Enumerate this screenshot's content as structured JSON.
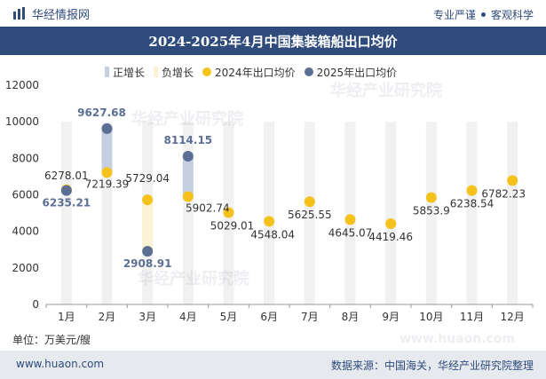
{
  "header": {
    "brand": "华经情报网",
    "tagline_left": "专业严谨",
    "tagline_right": "客观科学"
  },
  "title": "2024-2025年4月中国集装箱船出口均价",
  "legend": {
    "positive": "正增长",
    "negative": "负增长",
    "series2024": "2024年出口均价",
    "series2025": "2025年出口均价"
  },
  "unit_label": "单位：万美元/艘",
  "footer": {
    "website": "www.huaon.com",
    "source": "数据来源：中国海关，华经产业研究院整理"
  },
  "watermarks": [
    "华经产业研究院",
    "华经产业研究院",
    "华经产业研究院",
    "www.huaon.com"
  ],
  "colors": {
    "brand": "#2f4b7c",
    "series2024": "#f5c21b",
    "series2025": "#5b6f94",
    "positive_bar": "#c6cfe2",
    "negative_bar": "#fbf3d3",
    "column_band": "#f1f1f1"
  },
  "chart_data": {
    "type": "scatter",
    "categories": [
      "1月",
      "2月",
      "3月",
      "4月",
      "5月",
      "6月",
      "7月",
      "8月",
      "9月",
      "10月",
      "11月",
      "12月"
    ],
    "ylim": [
      0,
      12000
    ],
    "yticks": [
      0,
      2000,
      4000,
      6000,
      8000,
      10000,
      12000
    ],
    "series": [
      {
        "name": "2024年出口均价",
        "values": [
          6278.01,
          7219.39,
          5729.04,
          5902.74,
          5029.01,
          4548.04,
          5625.55,
          4645.07,
          4419.46,
          5853.9,
          6238.54,
          6782.23
        ],
        "labels": [
          "6278.01",
          "7219.39",
          "5729.04",
          "5902.74",
          "5029.01",
          "4548.04",
          "5625.55",
          "4645.07",
          "4419.46",
          "5853.9",
          "6238.54",
          "6782.23"
        ]
      },
      {
        "name": "2025年出口均价",
        "values": [
          6235.21,
          9627.68,
          2908.91,
          8114.15,
          null,
          null,
          null,
          null,
          null,
          null,
          null,
          null
        ],
        "labels": [
          "6235.21",
          "9627.68",
          "2908.91",
          "8114.15",
          "",
          "",
          "",
          "",
          "",
          "",
          "",
          ""
        ]
      }
    ],
    "grid": false,
    "legend_position": "top"
  }
}
